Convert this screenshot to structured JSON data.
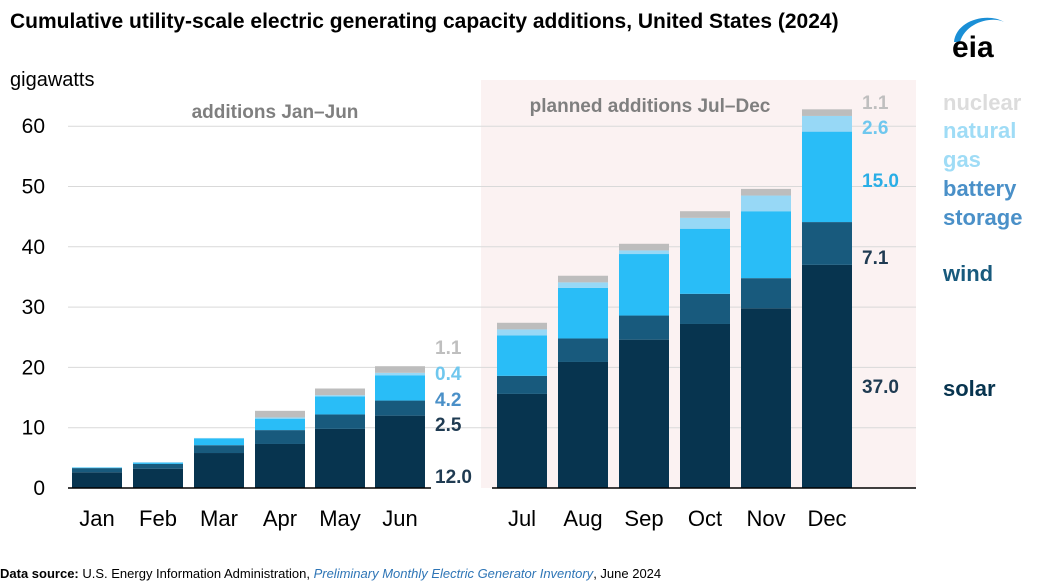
{
  "header": {
    "title": "Cumulative utility-scale electric generating capacity additions, United States (2024)",
    "units": "gigawatts",
    "logo_text": "eia"
  },
  "source": {
    "label": "Data source:",
    "text": " U.S. Energy Information Administration, ",
    "italic": "Preliminary Monthly Electric Generator Inventory",
    "date": ", June 2024"
  },
  "colors": {
    "solar": "#07344f",
    "wind": "#185a7d",
    "battery_storage": "#29bdf7",
    "natural_gas": "#97d8f6",
    "nuclear": "#bdbdbd",
    "planned_shading": "#fbf2f2",
    "grid": "#d9d9d9"
  },
  "legend": [
    {
      "key": "nuclear",
      "lines": [
        "nuclear"
      ],
      "color": "#dcdcdc"
    },
    {
      "key": "natural_gas",
      "lines": [
        "natural",
        "gas"
      ],
      "color": "#9fdcf6"
    },
    {
      "key": "battery_storage",
      "lines": [
        "battery",
        "storage"
      ],
      "color": "#4a90c8"
    },
    {
      "key": "wind",
      "lines": [
        "wind"
      ],
      "color": "#185a7d"
    },
    {
      "key": "solar",
      "lines": [
        "solar"
      ],
      "color": "#07344f"
    }
  ],
  "chart_data": {
    "type": "bar",
    "stacked": true,
    "ylim": [
      0,
      60
    ],
    "yticks": [
      0,
      10,
      20,
      30,
      40,
      50,
      60
    ],
    "grid": true,
    "categories": [
      "Jan",
      "Feb",
      "Mar",
      "Apr",
      "May",
      "Jun",
      "Jul",
      "Aug",
      "Sep",
      "Oct",
      "Nov",
      "Dec"
    ],
    "series": [
      {
        "name": "solar",
        "values": [
          2.6,
          3.2,
          5.8,
          7.3,
          9.8,
          12.0,
          15.6,
          20.9,
          24.6,
          27.2,
          29.8,
          37.0
        ]
      },
      {
        "name": "wind",
        "values": [
          0.7,
          0.8,
          1.3,
          2.3,
          2.4,
          2.5,
          3.0,
          3.9,
          4.0,
          5.0,
          5.0,
          7.1
        ]
      },
      {
        "name": "battery storage",
        "values": [
          0.1,
          0.2,
          1.1,
          1.9,
          3.0,
          4.2,
          6.7,
          8.4,
          10.2,
          10.8,
          11.1,
          15.0
        ]
      },
      {
        "name": "natural gas",
        "values": [
          0.0,
          0.1,
          0.1,
          0.2,
          0.2,
          0.4,
          1.0,
          0.9,
          0.6,
          1.8,
          2.6,
          2.6
        ]
      },
      {
        "name": "nuclear",
        "values": [
          0.0,
          0.0,
          0.0,
          1.1,
          1.1,
          1.1,
          1.1,
          1.1,
          1.1,
          1.1,
          1.1,
          1.1
        ]
      }
    ],
    "annotations": {
      "period_labels": [
        "additions Jan–Jun",
        "planned additions Jul–Dec"
      ],
      "jun_labels": [
        {
          "text": "1.1",
          "series": "nuclear",
          "color": "#bfbfbf"
        },
        {
          "text": "0.4",
          "series": "natural gas",
          "color": "#6fc7ee"
        },
        {
          "text": "4.2",
          "series": "battery storage",
          "color": "#4a90c8"
        },
        {
          "text": "2.5",
          "series": "wind",
          "color": "#1f3b52"
        },
        {
          "text": "12.0",
          "series": "solar",
          "color": "#1f3b52"
        }
      ],
      "dec_labels": [
        {
          "text": "1.1",
          "series": "nuclear",
          "color": "#bfbfbf"
        },
        {
          "text": "2.6",
          "series": "natural gas",
          "color": "#6fc7ee"
        },
        {
          "text": "15.0",
          "series": "battery storage",
          "color": "#29aee6"
        },
        {
          "text": "7.1",
          "series": "wind",
          "color": "#1f3b52"
        },
        {
          "text": "37.0",
          "series": "solar",
          "color": "#1f3b52"
        }
      ]
    }
  }
}
